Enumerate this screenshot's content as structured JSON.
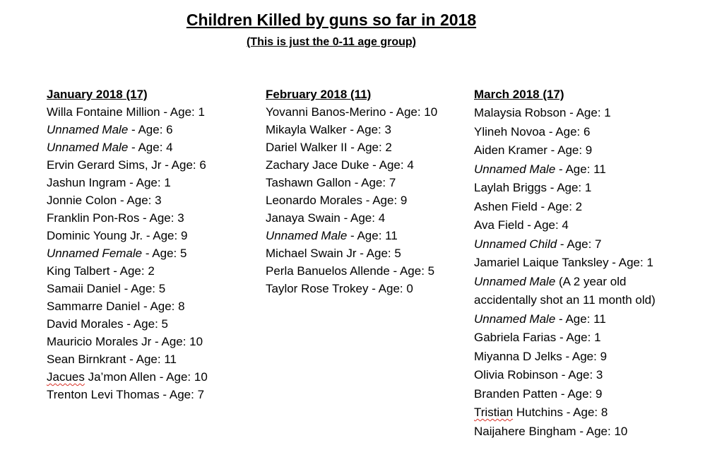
{
  "title": "Children Killed by guns so far in 2018",
  "subtitle": "(This is just the 0-11 age group)",
  "columns": [
    {
      "id": "january",
      "header": "January 2018 (17)",
      "entries": [
        {
          "name": "Willa Fontaine Million",
          "sep": " - ",
          "age": "Age: 1",
          "italic": false
        },
        {
          "name": "Unnamed Male",
          "sep": " - ",
          "age": "Age: 6",
          "italic": true
        },
        {
          "name": "Unnamed Male",
          "sep": " - ",
          "age": "Age: 4",
          "italic": true
        },
        {
          "name": "Ervin Gerard Sims, Jr",
          "sep": " - ",
          "age": "Age: 6",
          "italic": false
        },
        {
          "name": "Jashun Ingram",
          "sep": " - ",
          "age": "Age: 1",
          "italic": false
        },
        {
          "name": "Jonnie Colon",
          "sep": " - ",
          "age": "Age: 3",
          "italic": false
        },
        {
          "name": "Franklin Pon-Ros",
          "sep": " - ",
          "age": "Age: 3",
          "italic": false
        },
        {
          "name": "Dominic Young Jr.",
          "sep": " - ",
          "age": "Age: 9",
          "italic": false
        },
        {
          "name": "Unnamed Female",
          "sep": " - ",
          "age": "Age: 5",
          "italic": true
        },
        {
          "name": "King Talbert",
          "sep": " - ",
          "age": "Age: 2",
          "italic": false
        },
        {
          "name": "Samaii Daniel",
          "sep": " - ",
          "age": "Age: 5",
          "italic": false
        },
        {
          "name": "Sammarre Daniel",
          "sep": " - ",
          "age": "Age: 8",
          "italic": false
        },
        {
          "name": "David Morales",
          "sep": " - ",
          "age": "Age: 5",
          "italic": false
        },
        {
          "name": "Mauricio Morales Jr",
          "sep": " - ",
          "age": "Age: 10",
          "italic": false
        },
        {
          "name": "Sean Birnkrant",
          "sep": " - ",
          "age": "Age: 11",
          "italic": false
        },
        {
          "name": "Jacues",
          "rest": " Ja’mon Allen",
          "sep": " - ",
          "age": "Age: 10",
          "italic": false,
          "squiggle": true
        },
        {
          "name": "Trenton Levi Thomas",
          "sep": " - ",
          "age": "Age: 7",
          "italic": false
        }
      ]
    },
    {
      "id": "february",
      "header": "February 2018 (11)",
      "entries": [
        {
          "name": "Yovanni Banos-Merino",
          "sep": " - ",
          "age": "Age: 10",
          "italic": false
        },
        {
          "name": "Mikayla Walker",
          "sep": " - ",
          "age": "Age: 3",
          "italic": false
        },
        {
          "name": "Dariel Walker II",
          "sep": " - ",
          "age": "Age: 2",
          "italic": false
        },
        {
          "name": "Zachary Jace Duke",
          "sep": " - ",
          "age": "Age: 4",
          "italic": false
        },
        {
          "name": "Tashawn Gallon",
          "sep": " - ",
          "age": "Age: 7",
          "italic": false
        },
        {
          "name": "Leonardo Morales",
          "sep": " - ",
          "age": "Age: 9",
          "italic": false
        },
        {
          "name": "Janaya Swain",
          "sep": " - ",
          "age": "Age: 4",
          "italic": false
        },
        {
          "name": "Unnamed Male",
          "sep": " - ",
          "age": "Age: 11",
          "italic": true
        },
        {
          "name": "Michael Swain Jr",
          "sep": " - ",
          "age": "Age: 5",
          "italic": false
        },
        {
          "name": "Perla Banuelos Allende",
          "sep": " - ",
          "age": "Age: 5",
          "italic": false
        },
        {
          "name": "Taylor Rose Trokey",
          "sep": " - ",
          "age": "Age: 0",
          "italic": false
        }
      ]
    },
    {
      "id": "march",
      "header": "March 2018 (17)",
      "entries": [
        {
          "name": "Malaysia Robson",
          "sep": " - ",
          "age": "Age: 1",
          "italic": false
        },
        {
          "name": "Ylineh Novoa",
          "sep": " - ",
          "age": "Age: 6",
          "italic": false
        },
        {
          "name": "Aiden Kramer",
          "sep": " - ",
          "age": "Age: 9",
          "italic": false
        },
        {
          "name": "Unnamed Male",
          "sep": " - ",
          "age": "Age: 11",
          "italic": true
        },
        {
          "name": "Laylah Briggs",
          "sep": " - ",
          "age": "Age: 1",
          "italic": false
        },
        {
          "name": "Ashen Field",
          "sep": " - ",
          "age": "Age: 2",
          "italic": false
        },
        {
          "name": "Ava Field",
          "sep": " - ",
          "age": "Age: 4",
          "italic": false
        },
        {
          "name": "Unnamed Child",
          "sep": " - ",
          "age": "Age: 7",
          "italic": true
        },
        {
          "name": "Jamariel Laique Tanksley",
          "sep": " - ",
          "age": "Age: 1",
          "italic": false
        },
        {
          "name": "Unnamed Male",
          "sep": " ",
          "age": "(A 2 year old",
          "italic": true
        },
        {
          "name": "",
          "sep": "",
          "age": "accidentally shot an 11 month old)",
          "italic": false
        },
        {
          "name": "Unnamed Male",
          "sep": " - ",
          "age": "Age: 11",
          "italic": true
        },
        {
          "name": "Gabriela Farias",
          "sep": " - ",
          "age": "Age: 1",
          "italic": false
        },
        {
          "name": "Miyanna D  Jelks",
          "sep": " - ",
          "age": "Age: 9",
          "italic": false
        },
        {
          "name": "Olivia Robinson",
          "sep": " - ",
          "age": "Age: 3",
          "italic": false
        },
        {
          "name": "Branden Patten",
          "sep": " - ",
          "age": "Age: 9",
          "italic": false
        },
        {
          "name": "Tristian",
          "rest": " Hutchins",
          "sep": " - ",
          "age": "Age: 8",
          "italic": false,
          "squiggle": true
        },
        {
          "name": "Naijahere Bingham",
          "sep": " - ",
          "age": "Age: 10",
          "italic": false
        }
      ]
    }
  ]
}
